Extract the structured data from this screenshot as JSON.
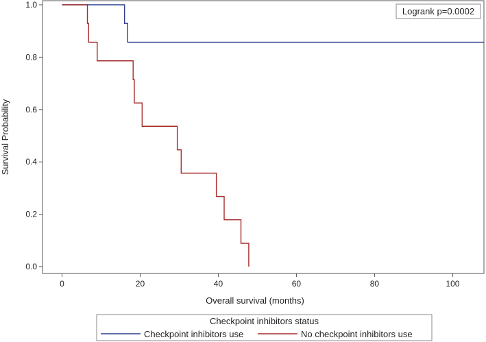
{
  "chart_data": {
    "type": "line",
    "subtype": "kaplan-meier step",
    "xlabel": "Overall survival (months)",
    "ylabel": "Survival Probability",
    "xlim": [
      -5,
      108
    ],
    "ylim": [
      0,
      1
    ],
    "xticks": [
      0,
      20,
      40,
      60,
      80,
      100
    ],
    "yticks": [
      0.0,
      0.2,
      0.4,
      0.6,
      0.8,
      1.0
    ],
    "ytick_labels": [
      "0.0",
      "0.2",
      "0.4",
      "0.6",
      "0.8",
      "1.0"
    ],
    "grid": false,
    "annotation": "Logrank p=0.0002",
    "legend": {
      "title": "Checkpoint inhibitors status",
      "placement": "bottom"
    },
    "series": [
      {
        "name": "Checkpoint inhibitors use",
        "color": "#2b3f8f",
        "x": [
          0,
          16,
          16.8,
          108
        ],
        "y": [
          1.0,
          0.929,
          0.857,
          0.857
        ]
      },
      {
        "name": "No checkpoint inhibitors use",
        "color": "#a52a2a",
        "x": [
          0,
          6.5,
          6.8,
          9,
          18.2,
          18.5,
          20.5,
          29.5,
          30.5,
          39.5,
          41.5,
          45.8,
          47.8,
          47.8
        ],
        "y": [
          1.0,
          0.929,
          0.857,
          0.786,
          0.714,
          0.625,
          0.536,
          0.446,
          0.357,
          0.268,
          0.179,
          0.089,
          0.089,
          0.0
        ]
      }
    ]
  }
}
